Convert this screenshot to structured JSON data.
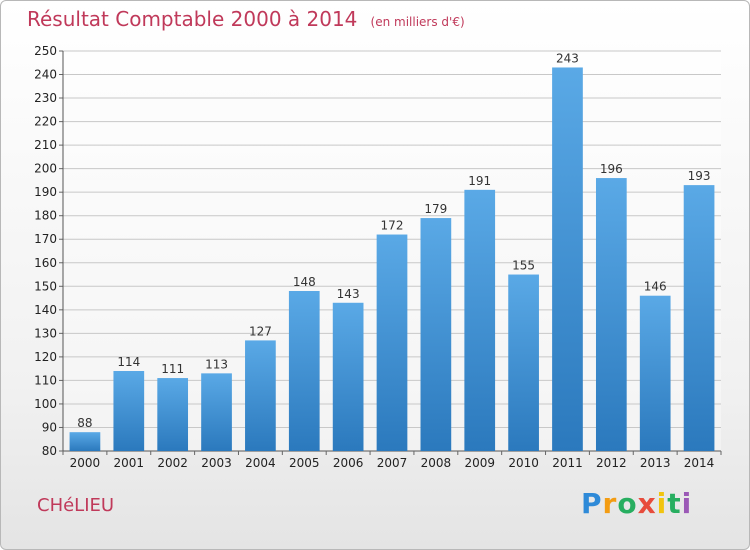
{
  "title": "Résultat Comptable 2000 à 2014",
  "subtitle": "(en milliers d'€)",
  "commune": "CHéLIEU",
  "logo": {
    "letters": [
      "P",
      "r",
      "o",
      "x",
      "i",
      "t",
      "i"
    ],
    "colors": [
      "#2e8ad8",
      "#f39c12",
      "#27ae60",
      "#e74c3c",
      "#f1c40f",
      "#27ae60",
      "#9b59b6"
    ]
  },
  "colors": {
    "bar_top": "#5aa9e6",
    "bar_bottom": "#2b79bd",
    "title": "#c0395a"
  },
  "chart_data": {
    "type": "bar",
    "categories": [
      "2000",
      "2001",
      "2002",
      "2003",
      "2004",
      "2005",
      "2006",
      "2007",
      "2008",
      "2009",
      "2010",
      "2011",
      "2012",
      "2013",
      "2014"
    ],
    "values": [
      88,
      114,
      111,
      113,
      127,
      148,
      143,
      172,
      179,
      191,
      155,
      243,
      196,
      146,
      193
    ],
    "ylim": [
      80,
      250
    ],
    "yticks": [
      80,
      90,
      100,
      110,
      120,
      130,
      140,
      150,
      160,
      170,
      180,
      190,
      200,
      210,
      220,
      230,
      240,
      250
    ],
    "grid": true
  }
}
